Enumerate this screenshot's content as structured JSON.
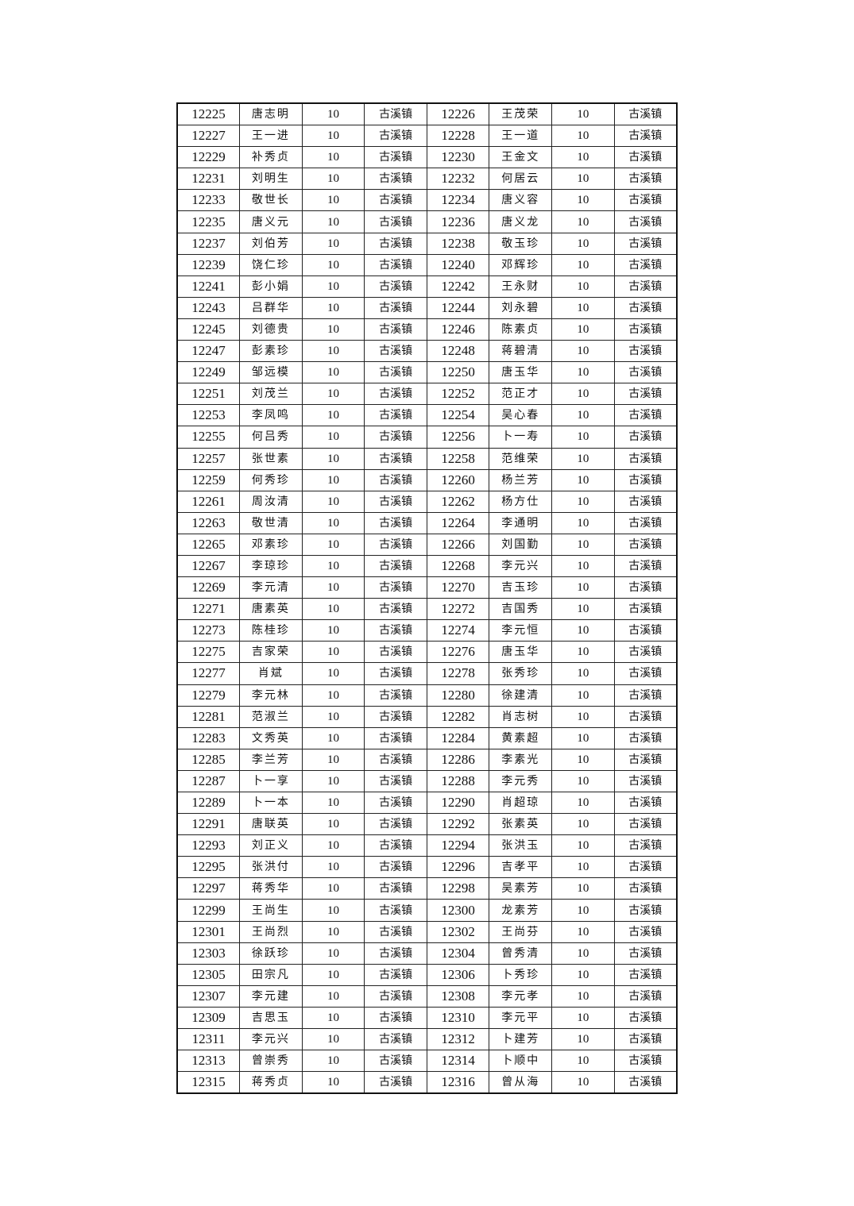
{
  "table": {
    "rows": [
      [
        "12225",
        "唐志明",
        "10",
        "古溪镇",
        "12226",
        "王茂荣",
        "10",
        "古溪镇"
      ],
      [
        "12227",
        "王一进",
        "10",
        "古溪镇",
        "12228",
        "王一道",
        "10",
        "古溪镇"
      ],
      [
        "12229",
        "补秀贞",
        "10",
        "古溪镇",
        "12230",
        "王金文",
        "10",
        "古溪镇"
      ],
      [
        "12231",
        "刘明生",
        "10",
        "古溪镇",
        "12232",
        "何居云",
        "10",
        "古溪镇"
      ],
      [
        "12233",
        "敬世长",
        "10",
        "古溪镇",
        "12234",
        "唐义容",
        "10",
        "古溪镇"
      ],
      [
        "12235",
        "唐义元",
        "10",
        "古溪镇",
        "12236",
        "唐义龙",
        "10",
        "古溪镇"
      ],
      [
        "12237",
        "刘伯芳",
        "10",
        "古溪镇",
        "12238",
        "敬玉珍",
        "10",
        "古溪镇"
      ],
      [
        "12239",
        "饶仁珍",
        "10",
        "古溪镇",
        "12240",
        "邓辉珍",
        "10",
        "古溪镇"
      ],
      [
        "12241",
        "彭小娟",
        "10",
        "古溪镇",
        "12242",
        "王永财",
        "10",
        "古溪镇"
      ],
      [
        "12243",
        "吕群华",
        "10",
        "古溪镇",
        "12244",
        "刘永碧",
        "10",
        "古溪镇"
      ],
      [
        "12245",
        "刘德贵",
        "10",
        "古溪镇",
        "12246",
        "陈素贞",
        "10",
        "古溪镇"
      ],
      [
        "12247",
        "彭素珍",
        "10",
        "古溪镇",
        "12248",
        "蒋碧清",
        "10",
        "古溪镇"
      ],
      [
        "12249",
        "邹远模",
        "10",
        "古溪镇",
        "12250",
        "唐玉华",
        "10",
        "古溪镇"
      ],
      [
        "12251",
        "刘茂兰",
        "10",
        "古溪镇",
        "12252",
        "范正才",
        "10",
        "古溪镇"
      ],
      [
        "12253",
        "李凤鸣",
        "10",
        "古溪镇",
        "12254",
        "吴心春",
        "10",
        "古溪镇"
      ],
      [
        "12255",
        "何吕秀",
        "10",
        "古溪镇",
        "12256",
        "卜一寿",
        "10",
        "古溪镇"
      ],
      [
        "12257",
        "张世素",
        "10",
        "古溪镇",
        "12258",
        "范维荣",
        "10",
        "古溪镇"
      ],
      [
        "12259",
        "何秀珍",
        "10",
        "古溪镇",
        "12260",
        "杨兰芳",
        "10",
        "古溪镇"
      ],
      [
        "12261",
        "周汝清",
        "10",
        "古溪镇",
        "12262",
        "杨方仕",
        "10",
        "古溪镇"
      ],
      [
        "12263",
        "敬世清",
        "10",
        "古溪镇",
        "12264",
        "李通明",
        "10",
        "古溪镇"
      ],
      [
        "12265",
        "邓素珍",
        "10",
        "古溪镇",
        "12266",
        "刘国勤",
        "10",
        "古溪镇"
      ],
      [
        "12267",
        "李琼珍",
        "10",
        "古溪镇",
        "12268",
        "李元兴",
        "10",
        "古溪镇"
      ],
      [
        "12269",
        "李元清",
        "10",
        "古溪镇",
        "12270",
        "吉玉珍",
        "10",
        "古溪镇"
      ],
      [
        "12271",
        "唐素英",
        "10",
        "古溪镇",
        "12272",
        "吉国秀",
        "10",
        "古溪镇"
      ],
      [
        "12273",
        "陈桂珍",
        "10",
        "古溪镇",
        "12274",
        "李元恒",
        "10",
        "古溪镇"
      ],
      [
        "12275",
        "吉家荣",
        "10",
        "古溪镇",
        "12276",
        "唐玉华",
        "10",
        "古溪镇"
      ],
      [
        "12277",
        "肖斌",
        "10",
        "古溪镇",
        "12278",
        "张秀珍",
        "10",
        "古溪镇"
      ],
      [
        "12279",
        "李元林",
        "10",
        "古溪镇",
        "12280",
        "徐建清",
        "10",
        "古溪镇"
      ],
      [
        "12281",
        "范淑兰",
        "10",
        "古溪镇",
        "12282",
        "肖志树",
        "10",
        "古溪镇"
      ],
      [
        "12283",
        "文秀英",
        "10",
        "古溪镇",
        "12284",
        "黄素超",
        "10",
        "古溪镇"
      ],
      [
        "12285",
        "李兰芳",
        "10",
        "古溪镇",
        "12286",
        "李素光",
        "10",
        "古溪镇"
      ],
      [
        "12287",
        "卜一享",
        "10",
        "古溪镇",
        "12288",
        "李元秀",
        "10",
        "古溪镇"
      ],
      [
        "12289",
        "卜一本",
        "10",
        "古溪镇",
        "12290",
        "肖超琼",
        "10",
        "古溪镇"
      ],
      [
        "12291",
        "唐联英",
        "10",
        "古溪镇",
        "12292",
        "张素英",
        "10",
        "古溪镇"
      ],
      [
        "12293",
        "刘正义",
        "10",
        "古溪镇",
        "12294",
        "张洪玉",
        "10",
        "古溪镇"
      ],
      [
        "12295",
        "张洪付",
        "10",
        "古溪镇",
        "12296",
        "吉孝平",
        "10",
        "古溪镇"
      ],
      [
        "12297",
        "蒋秀华",
        "10",
        "古溪镇",
        "12298",
        "吴素芳",
        "10",
        "古溪镇"
      ],
      [
        "12299",
        "王尚生",
        "10",
        "古溪镇",
        "12300",
        "龙素芳",
        "10",
        "古溪镇"
      ],
      [
        "12301",
        "王尚烈",
        "10",
        "古溪镇",
        "12302",
        "王尚芬",
        "10",
        "古溪镇"
      ],
      [
        "12303",
        "徐跃珍",
        "10",
        "古溪镇",
        "12304",
        "曾秀清",
        "10",
        "古溪镇"
      ],
      [
        "12305",
        "田宗凡",
        "10",
        "古溪镇",
        "12306",
        "卜秀珍",
        "10",
        "古溪镇"
      ],
      [
        "12307",
        "李元建",
        "10",
        "古溪镇",
        "12308",
        "李元孝",
        "10",
        "古溪镇"
      ],
      [
        "12309",
        "吉思玉",
        "10",
        "古溪镇",
        "12310",
        "李元平",
        "10",
        "古溪镇"
      ],
      [
        "12311",
        "李元兴",
        "10",
        "古溪镇",
        "12312",
        "卜建芳",
        "10",
        "古溪镇"
      ],
      [
        "12313",
        "曾崇秀",
        "10",
        "古溪镇",
        "12314",
        "卜顺中",
        "10",
        "古溪镇"
      ],
      [
        "12315",
        "蒋秀贞",
        "10",
        "古溪镇",
        "12316",
        "曾从海",
        "10",
        "古溪镇"
      ]
    ]
  }
}
